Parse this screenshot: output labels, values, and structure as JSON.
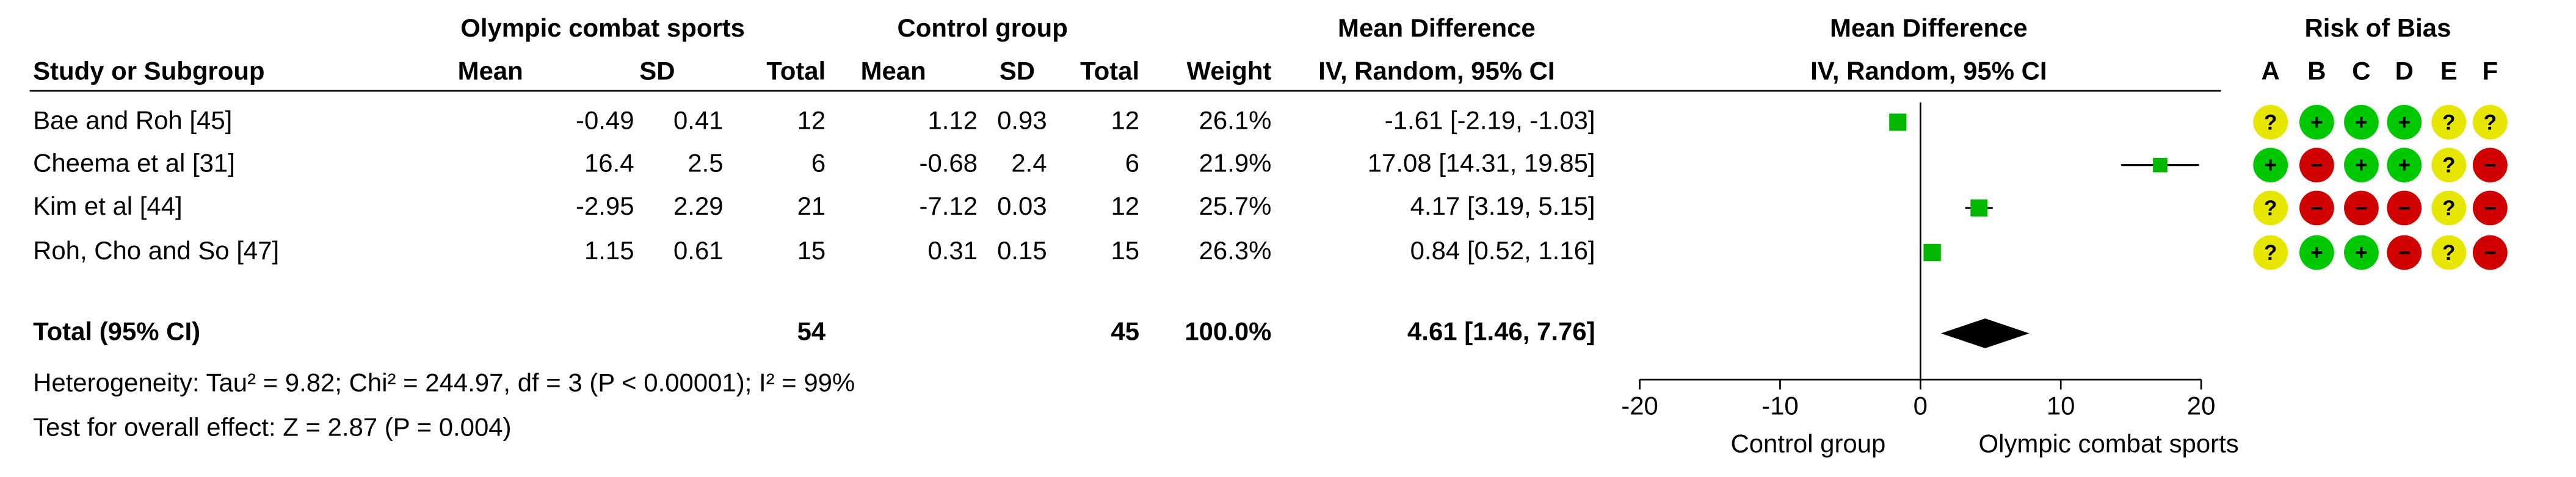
{
  "table": {
    "group_headers": [
      "Olympic combat sports",
      "Control group",
      "Mean Difference"
    ],
    "columns": [
      "Study or Subgroup",
      "Mean",
      "SD",
      "Total",
      "Mean",
      "SD",
      "Total",
      "Weight",
      "IV, Random, 95% CI"
    ],
    "rows": [
      [
        "Bae and Roh [45]",
        "-0.49",
        "0.41",
        "12",
        "1.12",
        "0.93",
        "12",
        "26.1%",
        "-1.61 [-2.19, -1.03]"
      ],
      [
        "Cheema et al [31]",
        "16.4",
        "2.5",
        "6",
        "-0.68",
        "2.4",
        "6",
        "21.9%",
        "17.08 [14.31, 19.85]"
      ],
      [
        "Kim et al [44]",
        "-2.95",
        "2.29",
        "21",
        "-7.12",
        "0.03",
        "12",
        "25.7%",
        "4.17 [3.19, 5.15]"
      ],
      [
        "Roh, Cho and So [47]",
        "1.15",
        "0.61",
        "15",
        "0.31",
        "0.15",
        "15",
        "26.3%",
        "0.84 [0.52, 1.16]"
      ]
    ],
    "total": {
      "label": "Total (95% CI)",
      "e_total": "54",
      "c_total": "45",
      "weight": "100.0%",
      "ci": "4.61 [1.46, 7.76]"
    },
    "heterogeneity": "Heterogeneity: Tau² = 9.82; Chi² = 244.97, df = 3 (P < 0.00001); I² = 99%",
    "overall_effect": "Test for overall effect: Z = 2.87 (P = 0.004)"
  },
  "chart_data": {
    "type": "forest",
    "title": "Mean Difference",
    "subtitle": "IV, Random, 95% CI",
    "values": [
      -1.61,
      17.08,
      4.17,
      0.84
    ],
    "ci_low": [
      -2.19,
      14.31,
      3.19,
      0.52
    ],
    "ci_high": [
      -1.03,
      19.85,
      5.15,
      1.16
    ],
    "weights": [
      26.1,
      21.9,
      25.7,
      26.3
    ],
    "total": {
      "value": 4.61,
      "ci_low": 1.46,
      "ci_high": 7.76
    },
    "xlim": [
      -20,
      20
    ],
    "xticks": [
      -20,
      -10,
      0,
      10,
      20
    ],
    "xlabel_left": "Control group",
    "xlabel_right": "Olympic combat sports",
    "color": "#00b800",
    "diamond_color": "#000000"
  },
  "risk_of_bias": {
    "title": "Risk of Bias",
    "domains": [
      "A",
      "B",
      "C",
      "D",
      "E",
      "F"
    ],
    "ratings": [
      [
        "?",
        "+",
        "+",
        "+",
        "?",
        "?"
      ],
      [
        "+",
        "−",
        "+",
        "+",
        "?",
        "−"
      ],
      [
        "?",
        "−",
        "−",
        "−",
        "?",
        "−"
      ],
      [
        "?",
        "+",
        "+",
        "−",
        "?",
        "−"
      ]
    ],
    "colors": {
      "+": "#00c800",
      "?": "#e6e600",
      "−": "#d00000"
    }
  }
}
